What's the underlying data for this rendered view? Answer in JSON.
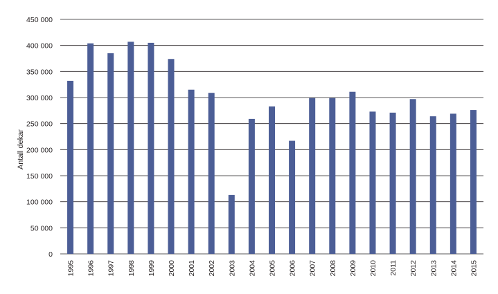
{
  "chart_data": {
    "type": "bar",
    "title": "",
    "xlabel": "",
    "ylabel": "Antall dekar",
    "ylim": [
      0,
      450000
    ],
    "yticks": [
      0,
      50000,
      100000,
      150000,
      200000,
      250000,
      300000,
      350000,
      400000,
      450000
    ],
    "ytick_labels": [
      "0",
      "50 000",
      "100 000",
      "150 000",
      "200 000",
      "250 000",
      "300 000",
      "350 000",
      "400 000",
      "450 000"
    ],
    "grid": true,
    "legend": "none",
    "bar_color": "#4c5e96",
    "categories": [
      "1995",
      "1996",
      "1997",
      "1998",
      "1999",
      "2000",
      "2001",
      "2002",
      "2003",
      "2004",
      "2005",
      "2006",
      "2007",
      "2008",
      "2009",
      "2010",
      "2011",
      "2012",
      "2013",
      "2014",
      "2015"
    ],
    "values": [
      332000,
      404000,
      385000,
      407000,
      405000,
      374000,
      315000,
      309000,
      113000,
      259000,
      283000,
      217000,
      299000,
      299000,
      311000,
      273000,
      271000,
      297000,
      264000,
      269000,
      276000
    ]
  }
}
